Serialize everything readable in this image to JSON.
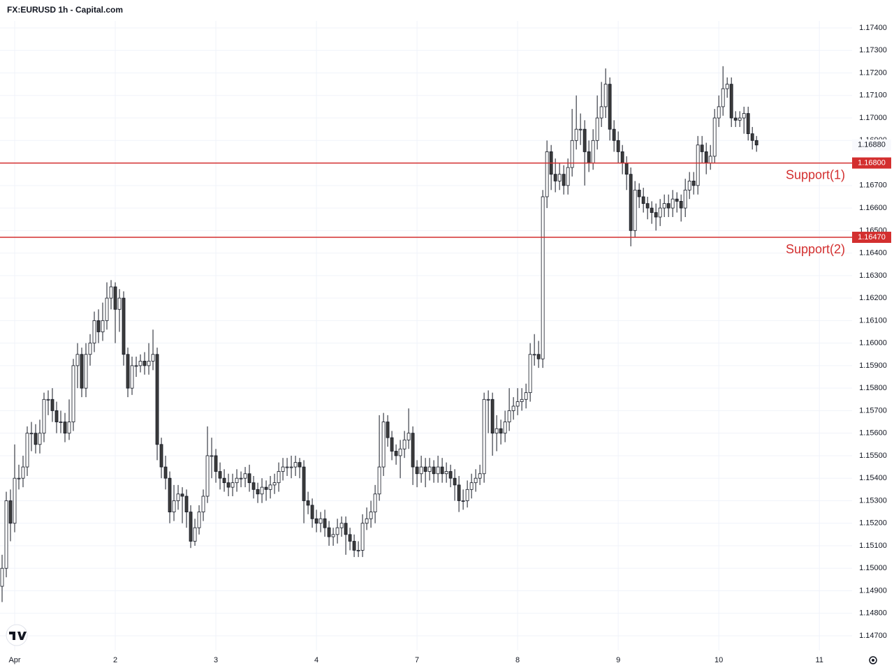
{
  "chart_data": {
    "type": "candlestick",
    "title": "FX:EURUSD 1h - Capital.com",
    "open": [
      1.1492,
      1.15,
      1.153,
      1.152,
      1.154,
      1.154,
      1.1545,
      1.156,
      1.156,
      1.1555,
      1.156,
      1.1575,
      1.1575,
      1.157,
      1.1565,
      1.1565,
      1.156,
      1.1565,
      1.159,
      1.1595,
      1.158,
      1.1595,
      1.16,
      1.161,
      1.1605,
      1.161,
      1.162,
      1.1625,
      1.1615,
      1.162,
      1.1595,
      1.158,
      1.159,
      1.159,
      1.1592,
      1.159,
      1.1592,
      1.1595,
      1.1555,
      1.1545,
      1.154,
      1.1525,
      1.153,
      1.1533,
      1.1532,
      1.1525,
      1.1512,
      1.1518,
      1.1525,
      1.1532,
      1.155,
      1.155,
      1.1543,
      1.154,
      1.1538,
      1.1536,
      1.1538,
      1.154,
      1.154,
      1.1542,
      1.1538,
      1.1535,
      1.1533,
      1.1536,
      1.1535,
      1.1537,
      1.1538,
      1.1543,
      1.1545,
      1.1545,
      1.1545,
      1.1547,
      1.1545,
      1.153,
      1.1528,
      1.1522,
      1.152,
      1.1522,
      1.1518,
      1.1514,
      1.1515,
      1.1518,
      1.152,
      1.1515,
      1.1512,
      1.1508,
      1.1508,
      1.152,
      1.1522,
      1.1525,
      1.1533,
      1.1545,
      1.1565,
      1.1558,
      1.1552,
      1.155,
      1.1553,
      1.1557,
      1.156,
      1.1545,
      1.1542,
      1.1545,
      1.1543,
      1.1545,
      1.1542,
      1.1545,
      1.1542,
      1.1543,
      1.154,
      1.1537,
      1.153,
      1.153,
      1.1535,
      1.1538,
      1.154,
      1.1542,
      1.1575,
      1.1575,
      1.156,
      1.1562,
      1.156,
      1.1565,
      1.157,
      1.1572,
      1.1574,
      1.1575,
      1.1578,
      1.1595,
      1.1595,
      1.1593,
      1.1665,
      1.1685,
      1.1675,
      1.1672,
      1.1675,
      1.167,
      1.1678,
      1.169,
      1.1695,
      1.1695,
      1.1685,
      1.168,
      1.169,
      1.17,
      1.1705,
      1.1715,
      1.1695,
      1.169,
      1.1685,
      1.168,
      1.1675,
      1.165,
      1.1668,
      1.1665,
      1.1662,
      1.166,
      1.1658,
      1.1656,
      1.166,
      1.1662,
      1.166,
      1.1664,
      1.1663,
      1.166,
      1.1668,
      1.1672,
      1.167,
      1.1688,
      1.1685,
      1.168,
      1.1683,
      1.17,
      1.1705,
      1.1713,
      1.1715,
      1.17,
      1.1699,
      1.17,
      1.1702,
      1.1693,
      1.169
    ],
    "high": [
      1.1506,
      1.1534,
      1.1535,
      1.1555,
      1.1546,
      1.155,
      1.1563,
      1.1565,
      1.1564,
      1.1566,
      1.1578,
      1.1579,
      1.158,
      1.1574,
      1.157,
      1.1569,
      1.1575,
      1.1593,
      1.16,
      1.1598,
      1.16,
      1.1604,
      1.1614,
      1.1615,
      1.1618,
      1.1627,
      1.1628,
      1.1627,
      1.1624,
      1.1623,
      1.1598,
      1.1594,
      1.1594,
      1.1595,
      1.1596,
      1.16,
      1.1606,
      1.1598,
      1.1558,
      1.155,
      1.1543,
      1.1537,
      1.1537,
      1.1536,
      1.1535,
      1.1528,
      1.1522,
      1.1528,
      1.1535,
      1.1563,
      1.1558,
      1.1553,
      1.1547,
      1.1544,
      1.1542,
      1.1542,
      1.1544,
      1.1543,
      1.1545,
      1.1546,
      1.1541,
      1.1538,
      1.154,
      1.1539,
      1.1541,
      1.1542,
      1.1547,
      1.1549,
      1.1549,
      1.155,
      1.155,
      1.1549,
      1.1548,
      1.1534,
      1.1531,
      1.1526,
      1.1525,
      1.1526,
      1.1521,
      1.1518,
      1.1522,
      1.1523,
      1.1523,
      1.1518,
      1.1515,
      1.1512,
      1.1524,
      1.1527,
      1.153,
      1.1537,
      1.1568,
      1.1569,
      1.1568,
      1.1561,
      1.1555,
      1.1557,
      1.1561,
      1.1571,
      1.1563,
      1.1548,
      1.155,
      1.1549,
      1.1549,
      1.1548,
      1.155,
      1.1549,
      1.1547,
      1.1546,
      1.1544,
      1.1541,
      1.1535,
      1.1539,
      1.1542,
      1.1544,
      1.1546,
      1.1578,
      1.1579,
      1.1578,
      1.1568,
      1.1566,
      1.157,
      1.158,
      1.1576,
      1.158,
      1.158,
      1.1582,
      1.16,
      1.1604,
      1.1601,
      1.1668,
      1.169,
      1.1688,
      1.1682,
      1.168,
      1.1679,
      1.1682,
      1.1704,
      1.171,
      1.1702,
      1.1699,
      1.169,
      1.1695,
      1.171,
      1.1716,
      1.1722,
      1.1718,
      1.1699,
      1.1694,
      1.1688,
      1.1683,
      1.1678,
      1.1672,
      1.1671,
      1.1669,
      1.1665,
      1.1663,
      1.1662,
      1.1664,
      1.1666,
      1.1666,
      1.1668,
      1.1667,
      1.1666,
      1.1673,
      1.1676,
      1.1676,
      1.1692,
      1.1692,
      1.1689,
      1.1688,
      1.1704,
      1.171,
      1.1723,
      1.1718,
      1.1718,
      1.1703,
      1.1703,
      1.1705,
      1.1705,
      1.1696,
      1.1692
    ],
    "low": [
      1.1485,
      1.1496,
      1.1512,
      1.1516,
      1.1535,
      1.1536,
      1.1541,
      1.1552,
      1.1551,
      1.1551,
      1.1556,
      1.1568,
      1.1565,
      1.156,
      1.156,
      1.1556,
      1.1557,
      1.1561,
      1.158,
      1.1576,
      1.1576,
      1.159,
      1.1596,
      1.16,
      1.1601,
      1.1606,
      1.1615,
      1.16,
      1.1605,
      1.159,
      1.1576,
      1.1577,
      1.1585,
      1.1587,
      1.1586,
      1.1586,
      1.1588,
      1.1548,
      1.154,
      1.1535,
      1.152,
      1.1521,
      1.1526,
      1.152,
      1.1518,
      1.1509,
      1.151,
      1.1515,
      1.1521,
      1.1529,
      1.154,
      1.1538,
      1.1535,
      1.1534,
      1.1532,
      1.1532,
      1.1534,
      1.1536,
      1.1536,
      1.1534,
      1.1531,
      1.1529,
      1.1529,
      1.153,
      1.1531,
      1.1533,
      1.1534,
      1.1539,
      1.1541,
      1.154,
      1.1541,
      1.154,
      1.152,
      1.1524,
      1.1518,
      1.1516,
      1.1516,
      1.1514,
      1.151,
      1.151,
      1.1511,
      1.1514,
      1.1506,
      1.1508,
      1.1505,
      1.1505,
      1.1505,
      1.1517,
      1.1518,
      1.152,
      1.153,
      1.1541,
      1.1554,
      1.1548,
      1.1546,
      1.154,
      1.1549,
      1.1553,
      1.1537,
      1.1536,
      1.1538,
      1.1536,
      1.1539,
      1.1538,
      1.1538,
      1.1538,
      1.1538,
      1.1536,
      1.153,
      1.1525,
      1.1526,
      1.1527,
      1.1531,
      1.1534,
      1.1537,
      1.1538,
      1.156,
      1.155,
      1.1552,
      1.1555,
      1.1556,
      1.1561,
      1.1566,
      1.1568,
      1.157,
      1.1571,
      1.1574,
      1.159,
      1.1589,
      1.1589,
      1.166,
      1.1668,
      1.1667,
      1.1668,
      1.1666,
      1.1666,
      1.1674,
      1.1686,
      1.1688,
      1.167,
      1.1676,
      1.1677,
      1.1686,
      1.1696,
      1.17,
      1.169,
      1.1685,
      1.168,
      1.1675,
      1.1668,
      1.1643,
      1.1647,
      1.166,
      1.1658,
      1.1655,
      1.1653,
      1.165,
      1.1652,
      1.1656,
      1.1656,
      1.1656,
      1.1658,
      1.1654,
      1.1656,
      1.1664,
      1.1666,
      1.1666,
      1.168,
      1.1675,
      1.1677,
      1.168,
      1.1696,
      1.1701,
      1.1709,
      1.1696,
      1.1696,
      1.1696,
      1.1693,
      1.169,
      1.1686,
      1.1685
    ],
    "close": [
      1.15,
      1.153,
      1.152,
      1.154,
      1.154,
      1.1545,
      1.156,
      1.156,
      1.1555,
      1.156,
      1.1575,
      1.1575,
      1.157,
      1.1565,
      1.1565,
      1.156,
      1.1565,
      1.159,
      1.1595,
      1.158,
      1.1595,
      1.16,
      1.161,
      1.1605,
      1.161,
      1.162,
      1.1625,
      1.1615,
      1.162,
      1.1595,
      1.158,
      1.159,
      1.159,
      1.1592,
      1.159,
      1.1592,
      1.1595,
      1.1555,
      1.1545,
      1.154,
      1.1525,
      1.153,
      1.1533,
      1.1532,
      1.1525,
      1.1512,
      1.1518,
      1.1525,
      1.1532,
      1.155,
      1.155,
      1.1543,
      1.154,
      1.1538,
      1.1536,
      1.1538,
      1.154,
      1.154,
      1.1542,
      1.1538,
      1.1535,
      1.1533,
      1.1536,
      1.1535,
      1.1537,
      1.1538,
      1.1543,
      1.1545,
      1.1545,
      1.1545,
      1.1547,
      1.1545,
      1.153,
      1.1528,
      1.1522,
      1.152,
      1.1522,
      1.1518,
      1.1514,
      1.1515,
      1.1518,
      1.152,
      1.1515,
      1.1512,
      1.1508,
      1.1508,
      1.152,
      1.1522,
      1.1525,
      1.1533,
      1.1545,
      1.1565,
      1.1558,
      1.1552,
      1.155,
      1.1553,
      1.1557,
      1.156,
      1.1545,
      1.1542,
      1.1545,
      1.1543,
      1.1545,
      1.1542,
      1.1545,
      1.1542,
      1.1543,
      1.154,
      1.1537,
      1.153,
      1.153,
      1.1535,
      1.1538,
      1.154,
      1.1542,
      1.1575,
      1.1575,
      1.156,
      1.1562,
      1.156,
      1.1565,
      1.157,
      1.1572,
      1.1574,
      1.1575,
      1.1578,
      1.1595,
      1.1595,
      1.1593,
      1.1665,
      1.1685,
      1.1675,
      1.1672,
      1.1675,
      1.167,
      1.1678,
      1.169,
      1.1695,
      1.1695,
      1.1685,
      1.168,
      1.169,
      1.17,
      1.1705,
      1.1715,
      1.1695,
      1.169,
      1.1685,
      1.168,
      1.1675,
      1.165,
      1.1668,
      1.1665,
      1.1662,
      1.166,
      1.1658,
      1.1656,
      1.166,
      1.1662,
      1.166,
      1.1664,
      1.1663,
      1.166,
      1.1668,
      1.1672,
      1.167,
      1.1688,
      1.1685,
      1.168,
      1.1683,
      1.17,
      1.1705,
      1.1713,
      1.1715,
      1.17,
      1.1699,
      1.17,
      1.1702,
      1.1693,
      1.169,
      1.1688
    ],
    "xlim": [
      -0.5,
      202.8
    ],
    "xticks": [
      {
        "value": 3,
        "label": "Apr"
      },
      {
        "value": 27,
        "label": "2"
      },
      {
        "value": 51,
        "label": "3"
      },
      {
        "value": 75,
        "label": "4"
      },
      {
        "value": 99,
        "label": "7"
      },
      {
        "value": 123,
        "label": "8"
      },
      {
        "value": 147,
        "label": "9"
      },
      {
        "value": 171,
        "label": "10"
      },
      {
        "value": 195,
        "label": "11"
      }
    ],
    "ylim": [
      1.14635,
      1.17431
    ],
    "yticks": [
      {
        "value": 1.147,
        "label": "1.14700"
      },
      {
        "value": 1.148,
        "label": "1.14800"
      },
      {
        "value": 1.149,
        "label": "1.14900"
      },
      {
        "value": 1.15,
        "label": "1.15000"
      },
      {
        "value": 1.151,
        "label": "1.15100"
      },
      {
        "value": 1.152,
        "label": "1.15200"
      },
      {
        "value": 1.153,
        "label": "1.15300"
      },
      {
        "value": 1.154,
        "label": "1.15400"
      },
      {
        "value": 1.155,
        "label": "1.15500"
      },
      {
        "value": 1.156,
        "label": "1.15600"
      },
      {
        "value": 1.157,
        "label": "1.15700"
      },
      {
        "value": 1.158,
        "label": "1.15800"
      },
      {
        "value": 1.159,
        "label": "1.15900"
      },
      {
        "value": 1.16,
        "label": "1.16000"
      },
      {
        "value": 1.161,
        "label": "1.16100"
      },
      {
        "value": 1.162,
        "label": "1.16200"
      },
      {
        "value": 1.163,
        "label": "1.16300"
      },
      {
        "value": 1.164,
        "label": "1.16400"
      },
      {
        "value": 1.165,
        "label": "1.16500"
      },
      {
        "value": 1.166,
        "label": "1.16600"
      },
      {
        "value": 1.167,
        "label": "1.16700"
      },
      {
        "value": 1.168,
        "label": "1.16800"
      },
      {
        "value": 1.169,
        "label": "1.16900"
      },
      {
        "value": 1.17,
        "label": "1.17000"
      },
      {
        "value": 1.171,
        "label": "1.17100"
      },
      {
        "value": 1.172,
        "label": "1.17200"
      },
      {
        "value": 1.173,
        "label": "1.17300"
      },
      {
        "value": 1.174,
        "label": "1.17400"
      }
    ],
    "grid": true,
    "up_color": "#ffffff",
    "down_color": "#3c3c3c",
    "last_price": {
      "value": 1.1688,
      "label": "1.16880"
    },
    "levels": [
      {
        "name": "Support(1)",
        "value": 1.168,
        "label": "1.16800",
        "color": "#d32f2f"
      },
      {
        "name": "Support(2)",
        "value": 1.1647,
        "label": "1.16470",
        "color": "#d32f2f"
      }
    ]
  }
}
